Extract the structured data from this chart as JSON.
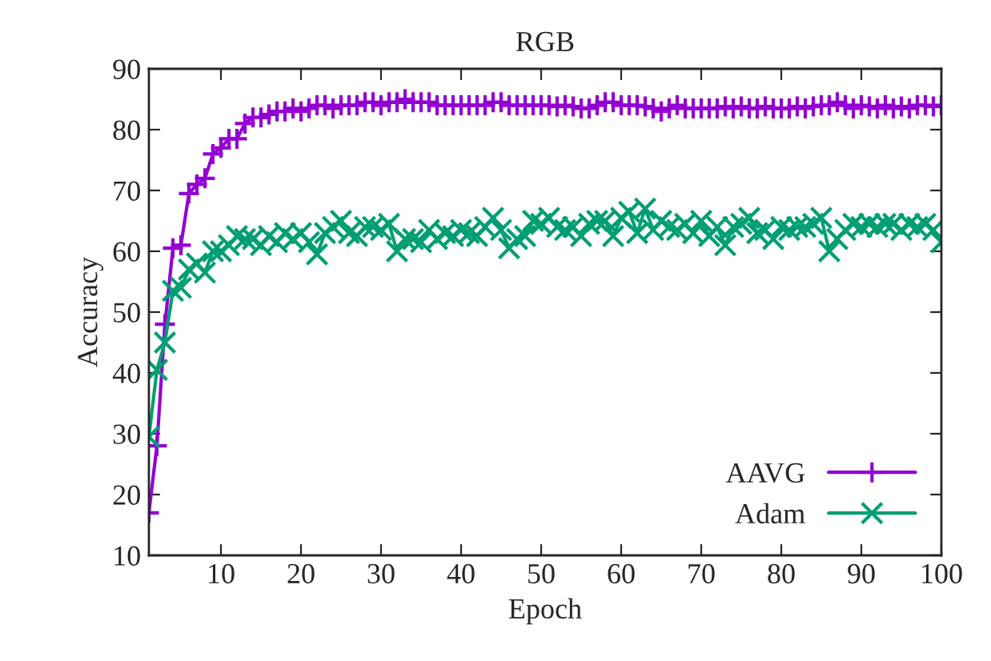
{
  "chart_data": {
    "type": "line",
    "title": "RGB",
    "xlabel": "Epoch",
    "ylabel": "Accuracy",
    "x": [
      1,
      2,
      3,
      4,
      5,
      6,
      7,
      8,
      9,
      10,
      11,
      12,
      13,
      14,
      15,
      16,
      17,
      18,
      19,
      20,
      21,
      22,
      23,
      24,
      25,
      26,
      27,
      28,
      29,
      30,
      31,
      32,
      33,
      34,
      35,
      36,
      37,
      38,
      39,
      40,
      41,
      42,
      43,
      44,
      45,
      46,
      47,
      48,
      49,
      50,
      51,
      52,
      53,
      54,
      55,
      56,
      57,
      58,
      59,
      60,
      61,
      62,
      63,
      64,
      65,
      66,
      67,
      68,
      69,
      70,
      71,
      72,
      73,
      74,
      75,
      76,
      77,
      78,
      79,
      80,
      81,
      82,
      83,
      84,
      85,
      86,
      87,
      88,
      89,
      90,
      91,
      92,
      93,
      94,
      95,
      96,
      97,
      98,
      99,
      100
    ],
    "series": [
      {
        "name": "AAVG",
        "color": "#9400d3",
        "marker": "plus",
        "values": [
          17,
          28,
          48,
          60.5,
          61,
          69.5,
          71,
          72,
          76,
          77,
          78.5,
          78.5,
          81,
          82,
          82,
          82.5,
          83,
          83,
          83.5,
          83,
          83.5,
          84,
          84,
          83.5,
          84,
          84,
          84,
          84.5,
          84.5,
          84,
          84.5,
          84.5,
          85,
          84.5,
          84.5,
          84.5,
          84,
          84,
          84,
          84,
          84,
          84,
          84,
          84.5,
          84.5,
          84,
          84,
          84,
          84,
          84,
          84,
          83.8,
          84,
          83.8,
          83.5,
          83.5,
          84,
          84.5,
          84.5,
          84,
          84,
          84,
          83.8,
          83.5,
          83,
          83.5,
          84,
          83.5,
          83.5,
          83.5,
          83.5,
          83.5,
          83.8,
          83.5,
          83.8,
          83.5,
          83.5,
          83.8,
          83.5,
          83.5,
          83.5,
          83.8,
          83.5,
          83.8,
          84,
          84,
          84.5,
          84,
          83.5,
          84,
          83.8,
          83.5,
          84,
          83.5,
          83.8,
          83.5,
          84,
          84,
          83.8,
          84
        ]
      },
      {
        "name": "Adam",
        "color": "#009e73",
        "marker": "cross",
        "values": [
          29.5,
          40.5,
          45,
          53.5,
          54,
          57,
          58,
          56.5,
          60,
          60,
          61,
          62.5,
          62,
          62,
          61,
          62.5,
          61.5,
          63,
          62,
          63,
          61.5,
          59.5,
          63,
          64,
          65,
          63,
          62.5,
          64,
          64,
          63.5,
          64.5,
          60,
          62,
          62,
          61.5,
          63.5,
          62,
          63,
          62.5,
          63.5,
          63,
          62.5,
          64,
          65.5,
          63.5,
          60.5,
          62,
          62.5,
          65,
          64.5,
          65.5,
          64,
          63.5,
          64,
          62.5,
          64.5,
          65,
          65,
          62.5,
          65.5,
          66.5,
          63,
          67,
          63.5,
          65,
          64,
          63.5,
          64.5,
          63,
          65,
          62.5,
          64,
          61,
          64,
          64.5,
          65.5,
          63,
          63.5,
          62,
          64,
          63.5,
          64,
          64,
          64.5,
          65.5,
          60,
          62,
          63.5,
          64.5,
          64,
          64.5,
          64,
          64.5,
          64.5,
          63.5,
          64.5,
          64,
          64.5,
          63.5,
          61.5
        ]
      }
    ],
    "xlim": [
      1,
      100
    ],
    "xticks": [
      10,
      20,
      30,
      40,
      50,
      60,
      70,
      80,
      90,
      100
    ],
    "ylim": [
      10,
      90
    ],
    "yticks": [
      10,
      20,
      30,
      40,
      50,
      60,
      70,
      80,
      90
    ],
    "legend": "bottom right",
    "line_style": "solid"
  }
}
